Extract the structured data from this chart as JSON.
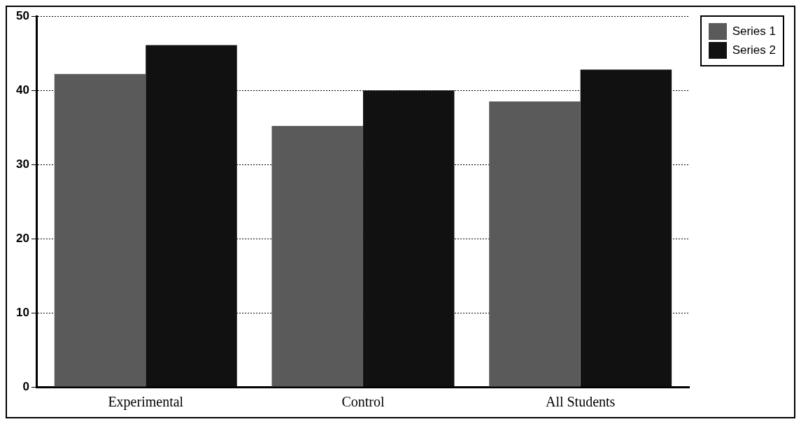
{
  "chart_data": {
    "type": "bar",
    "categories": [
      "Experimental",
      "Control",
      "All Students"
    ],
    "series": [
      {
        "name": "Series 1",
        "color": "#5a5a5a",
        "values": [
          42.2,
          35.2,
          38.5
        ]
      },
      {
        "name": "Series 2",
        "color": "#111111",
        "values": [
          46.1,
          40,
          42.8
        ]
      }
    ],
    "ylim": [
      0,
      50
    ],
    "yticks": [
      0,
      10,
      20,
      30,
      40,
      50
    ],
    "grid": "y",
    "legend": "top right"
  }
}
